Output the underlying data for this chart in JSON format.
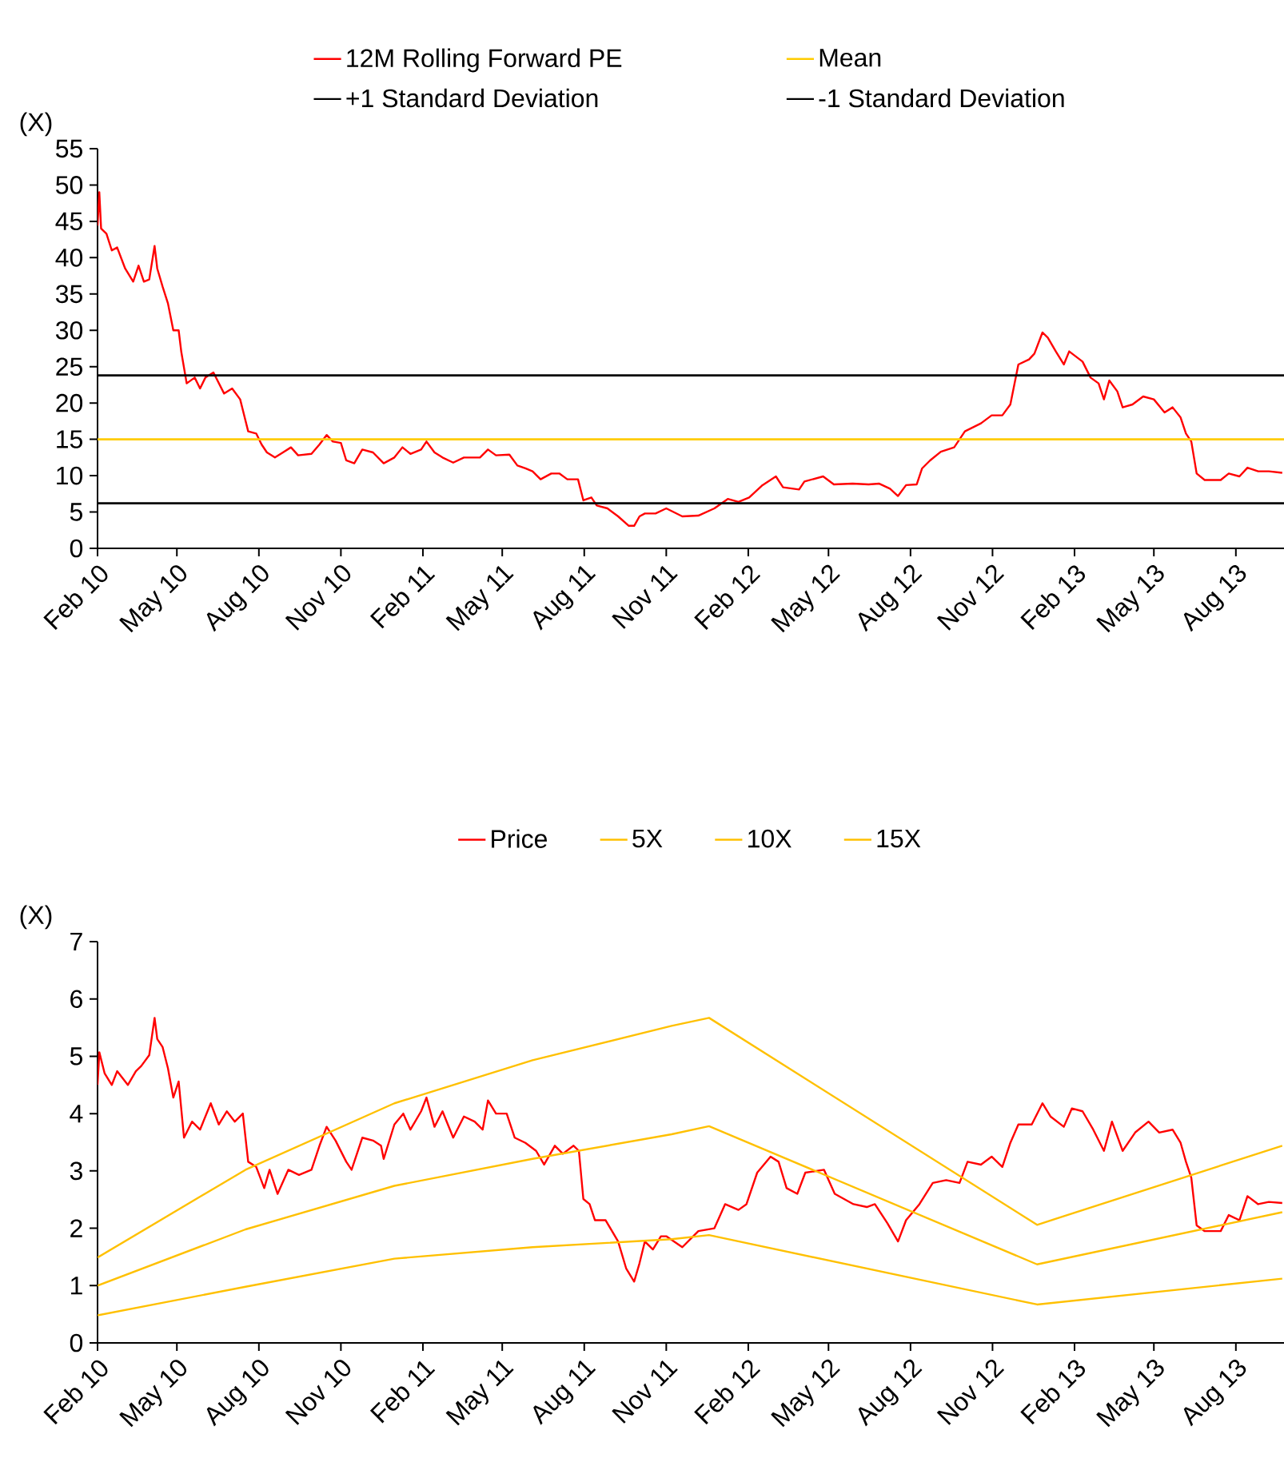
{
  "chart_data": [
    {
      "type": "line",
      "ylabel": "(X)",
      "legend": "top",
      "xlim": [
        "2010-02-01",
        "2013-09-24"
      ],
      "xticks": [
        {
          "value": "2010-02-01",
          "label": "Feb 10"
        },
        {
          "value": "2010-05-01",
          "label": "May 10"
        },
        {
          "value": "2010-08-01",
          "label": "Aug 10"
        },
        {
          "value": "2010-11-01",
          "label": "Nov 10"
        },
        {
          "value": "2011-02-01",
          "label": "Feb 11"
        },
        {
          "value": "2011-05-01",
          "label": "May 11"
        },
        {
          "value": "2011-08-01",
          "label": "Aug 11"
        },
        {
          "value": "2011-11-01",
          "label": "Nov 11"
        },
        {
          "value": "2012-02-01",
          "label": "Feb 12"
        },
        {
          "value": "2012-05-01",
          "label": "May 12"
        },
        {
          "value": "2012-08-01",
          "label": "Aug 12"
        },
        {
          "value": "2012-11-01",
          "label": "Nov 12"
        },
        {
          "value": "2013-02-01",
          "label": "Feb 13"
        },
        {
          "value": "2013-05-01",
          "label": "May 13"
        },
        {
          "value": "2013-08-01",
          "label": "Aug 13"
        }
      ],
      "ylim": [
        0,
        55
      ],
      "yticks": [
        0,
        5,
        10,
        15,
        20,
        25,
        30,
        35,
        40,
        45,
        50,
        55
      ],
      "series": [
        {
          "name": "12M Rolling Forward PE",
          "color": "#ff0000",
          "x": [
            "2010-02-01",
            "2010-02-03",
            "2010-02-05",
            "2010-02-11",
            "2010-02-17",
            "2010-02-23",
            "2010-03-04",
            "2010-03-13",
            "2010-03-19",
            "2010-03-25",
            "2010-03-31",
            "2010-04-06",
            "2010-04-09",
            "2010-04-15",
            "2010-04-21",
            "2010-04-27",
            "2010-05-03",
            "2010-05-06",
            "2010-05-12",
            "2010-05-21",
            "2010-05-27",
            "2010-06-02",
            "2010-06-11",
            "2010-06-23",
            "2010-07-02",
            "2010-07-11",
            "2010-07-20",
            "2010-07-29",
            "2010-08-04",
            "2010-08-10",
            "2010-08-19",
            "2010-08-28",
            "2010-09-06",
            "2010-09-14",
            "2010-09-29",
            "2010-10-08",
            "2010-10-16",
            "2010-10-23",
            "2010-11-01",
            "2010-11-07",
            "2010-11-16",
            "2010-11-25",
            "2010-12-07",
            "2010-12-19",
            "2010-12-31",
            "2011-01-09",
            "2011-01-18",
            "2011-01-30",
            "2011-02-05",
            "2011-02-14",
            "2011-02-23",
            "2011-03-07",
            "2011-03-19",
            "2011-04-06",
            "2011-04-15",
            "2011-04-24",
            "2011-05-09",
            "2011-05-18",
            "2011-05-27",
            "2011-06-04",
            "2011-06-13",
            "2011-06-25",
            "2011-07-04",
            "2011-07-13",
            "2011-07-25",
            "2011-07-31",
            "2011-08-09",
            "2011-08-15",
            "2011-08-27",
            "2011-09-08",
            "2011-09-20",
            "2011-09-26",
            "2011-10-02",
            "2011-10-08",
            "2011-10-20",
            "2011-11-01",
            "2011-11-19",
            "2011-12-07",
            "2011-12-25",
            "2012-01-09",
            "2012-01-21",
            "2012-02-02",
            "2012-02-17",
            "2012-03-03",
            "2012-03-11",
            "2012-03-29",
            "2012-04-04",
            "2012-04-25",
            "2012-05-07",
            "2012-05-28",
            "2012-06-15",
            "2012-06-27",
            "2012-07-09",
            "2012-07-18",
            "2012-07-27",
            "2012-08-08",
            "2012-08-14",
            "2012-08-23",
            "2012-09-04",
            "2012-09-19",
            "2012-10-01",
            "2012-10-19",
            "2012-10-31",
            "2012-11-12",
            "2012-11-21",
            "2012-11-30",
            "2012-12-12",
            "2012-12-18",
            "2012-12-27",
            "2013-01-02",
            "2013-01-11",
            "2013-01-20",
            "2013-01-26",
            "2013-02-10",
            "2013-02-19",
            "2013-02-28",
            "2013-03-06",
            "2013-03-12",
            "2013-03-21",
            "2013-03-27",
            "2013-04-07",
            "2013-04-19",
            "2013-05-01",
            "2013-05-13",
            "2013-05-22",
            "2013-05-31",
            "2013-06-06",
            "2013-06-12",
            "2013-06-18",
            "2013-06-27",
            "2013-07-15",
            "2013-07-24",
            "2013-08-05",
            "2013-08-14",
            "2013-08-26",
            "2013-09-07",
            "2013-09-22"
          ],
          "values": [
            44.4,
            49.0,
            44.0,
            43.3,
            41.0,
            41.4,
            38.5,
            36.7,
            38.9,
            36.7,
            37.0,
            41.6,
            38.5,
            36.0,
            33.7,
            30.0,
            30.0,
            27.0,
            22.7,
            23.5,
            22.0,
            23.5,
            24.2,
            21.3,
            22.0,
            20.5,
            16.1,
            15.8,
            14.3,
            13.2,
            12.5,
            13.2,
            13.9,
            12.8,
            13.0,
            14.3,
            15.6,
            14.7,
            14.5,
            12.1,
            11.7,
            13.6,
            13.2,
            11.7,
            12.5,
            13.9,
            13.0,
            13.6,
            14.7,
            13.2,
            12.5,
            11.8,
            12.5,
            12.5,
            13.6,
            12.8,
            12.9,
            11.4,
            11.0,
            10.6,
            9.5,
            10.3,
            10.3,
            9.5,
            9.5,
            6.6,
            7.0,
            5.9,
            5.5,
            4.4,
            3.1,
            3.1,
            4.4,
            4.8,
            4.8,
            5.5,
            4.4,
            4.5,
            5.5,
            6.8,
            6.4,
            7.0,
            8.7,
            9.9,
            8.4,
            8.1,
            9.2,
            9.9,
            8.8,
            8.9,
            8.8,
            8.9,
            8.2,
            7.2,
            8.7,
            8.8,
            11.0,
            12.1,
            13.3,
            13.9,
            16.1,
            17.2,
            18.3,
            18.3,
            19.8,
            25.3,
            26.0,
            26.8,
            29.7,
            29.0,
            27.1,
            25.3,
            27.1,
            25.7,
            23.5,
            22.7,
            20.5,
            23.1,
            21.6,
            19.4,
            19.8,
            20.9,
            20.5,
            18.7,
            19.4,
            18.0,
            15.8,
            14.7,
            10.3,
            9.4,
            9.4,
            10.3,
            9.9,
            11.1,
            10.6,
            10.6,
            10.4
          ]
        }
      ],
      "ref_lines": [
        {
          "axis": "y",
          "value": 15.0,
          "label": "Mean",
          "color": "#ffcc00"
        },
        {
          "axis": "y",
          "value": 23.8,
          "label": "+1 Standard Deviation",
          "color": "#000000"
        },
        {
          "axis": "y",
          "value": 6.2,
          "label": "-1 Standard Deviation",
          "color": "#000000"
        }
      ]
    },
    {
      "type": "line",
      "ylabel": "(X)",
      "legend": "top",
      "xlim": [
        "2010-02-01",
        "2013-09-24"
      ],
      "xticks": [
        {
          "value": "2010-02-01",
          "label": "Feb 10"
        },
        {
          "value": "2010-05-01",
          "label": "May 10"
        },
        {
          "value": "2010-08-01",
          "label": "Aug 10"
        },
        {
          "value": "2010-11-01",
          "label": "Nov 10"
        },
        {
          "value": "2011-02-01",
          "label": "Feb 11"
        },
        {
          "value": "2011-05-01",
          "label": "May 11"
        },
        {
          "value": "2011-08-01",
          "label": "Aug 11"
        },
        {
          "value": "2011-11-01",
          "label": "Nov 11"
        },
        {
          "value": "2012-02-01",
          "label": "Feb 12"
        },
        {
          "value": "2012-05-01",
          "label": "May 12"
        },
        {
          "value": "2012-08-01",
          "label": "Aug 12"
        },
        {
          "value": "2012-11-01",
          "label": "Nov 12"
        },
        {
          "value": "2013-02-01",
          "label": "Feb 13"
        },
        {
          "value": "2013-05-01",
          "label": "May 13"
        },
        {
          "value": "2013-08-01",
          "label": "Aug 13"
        }
      ],
      "ylim": [
        0,
        7
      ],
      "yticks": [
        0,
        1,
        2,
        3,
        4,
        5,
        6,
        7
      ],
      "series": [
        {
          "name": "Price",
          "color": "#ff0000",
          "x": [
            "2010-02-01",
            "2010-02-03",
            "2010-02-09",
            "2010-02-17",
            "2010-02-23",
            "2010-03-07",
            "2010-03-16",
            "2010-03-22",
            "2010-03-31",
            "2010-04-06",
            "2010-04-09",
            "2010-04-15",
            "2010-04-21",
            "2010-04-27",
            "2010-05-03",
            "2010-05-09",
            "2010-05-18",
            "2010-05-27",
            "2010-06-08",
            "2010-06-17",
            "2010-06-26",
            "2010-07-05",
            "2010-07-14",
            "2010-07-20",
            "2010-07-29",
            "2010-08-07",
            "2010-08-13",
            "2010-08-22",
            "2010-09-03",
            "2010-09-15",
            "2010-09-29",
            "2010-10-08",
            "2010-10-16",
            "2010-10-26",
            "2010-11-07",
            "2010-11-13",
            "2010-11-25",
            "2010-12-07",
            "2010-12-16",
            "2010-12-19",
            "2010-12-31",
            "2011-01-10",
            "2011-01-18",
            "2011-01-30",
            "2011-02-05",
            "2011-02-14",
            "2011-02-23",
            "2011-03-07",
            "2011-03-19",
            "2011-03-31",
            "2011-04-09",
            "2011-04-15",
            "2011-04-24",
            "2011-05-06",
            "2011-05-15",
            "2011-05-27",
            "2011-06-08",
            "2011-06-17",
            "2011-06-29",
            "2011-07-08",
            "2011-07-20",
            "2011-07-26",
            "2011-07-31",
            "2011-08-07",
            "2011-08-13",
            "2011-08-25",
            "2011-09-08",
            "2011-09-17",
            "2011-09-26",
            "2011-10-02",
            "2011-10-08",
            "2011-10-17",
            "2011-10-26",
            "2011-11-01",
            "2011-11-19",
            "2011-12-07",
            "2011-12-25",
            "2012-01-06",
            "2012-01-21",
            "2012-01-30",
            "2012-02-11",
            "2012-02-26",
            "2012-03-06",
            "2012-03-15",
            "2012-03-27",
            "2012-04-05",
            "2012-04-26",
            "2012-05-08",
            "2012-05-29",
            "2012-06-13",
            "2012-06-22",
            "2012-07-06",
            "2012-07-18",
            "2012-07-27",
            "2012-08-11",
            "2012-08-26",
            "2012-09-10",
            "2012-09-25",
            "2012-10-04",
            "2012-10-19",
            "2012-10-31",
            "2012-11-12",
            "2012-11-21",
            "2012-11-30",
            "2012-12-15",
            "2012-12-27",
            "2013-01-05",
            "2013-01-20",
            "2013-01-29",
            "2013-02-10",
            "2013-02-22",
            "2013-03-06",
            "2013-03-15",
            "2013-03-27",
            "2013-04-10",
            "2013-04-25",
            "2013-05-07",
            "2013-05-22",
            "2013-05-31",
            "2013-06-06",
            "2013-06-12",
            "2013-06-18",
            "2013-06-27",
            "2013-07-15",
            "2013-07-24",
            "2013-08-05",
            "2013-08-14",
            "2013-08-26",
            "2013-09-07",
            "2013-09-22"
          ],
          "values": [
            4.5,
            5.07,
            4.7,
            4.5,
            4.74,
            4.5,
            4.74,
            4.83,
            5.02,
            5.67,
            5.3,
            5.16,
            4.79,
            4.28,
            4.56,
            3.58,
            3.86,
            3.72,
            4.18,
            3.81,
            4.04,
            3.86,
            4.0,
            3.16,
            3.07,
            2.7,
            3.02,
            2.6,
            3.02,
            2.93,
            3.02,
            3.44,
            3.77,
            3.53,
            3.16,
            3.02,
            3.58,
            3.53,
            3.44,
            3.21,
            3.81,
            4.0,
            3.72,
            4.04,
            4.28,
            3.77,
            4.04,
            3.58,
            3.95,
            3.86,
            3.72,
            4.23,
            4.0,
            4.0,
            3.58,
            3.49,
            3.35,
            3.11,
            3.44,
            3.3,
            3.44,
            3.35,
            2.51,
            2.42,
            2.14,
            2.14,
            1.77,
            1.3,
            1.07,
            1.39,
            1.77,
            1.63,
            1.86,
            1.86,
            1.67,
            1.95,
            2.0,
            2.42,
            2.32,
            2.42,
            2.97,
            3.25,
            3.16,
            2.7,
            2.6,
            2.97,
            3.02,
            2.6,
            2.42,
            2.37,
            2.42,
            2.09,
            1.77,
            2.14,
            2.42,
            2.79,
            2.84,
            2.79,
            3.16,
            3.11,
            3.25,
            3.07,
            3.49,
            3.81,
            3.81,
            4.18,
            3.95,
            3.77,
            4.09,
            4.04,
            3.72,
            3.35,
            3.86,
            3.35,
            3.67,
            3.86,
            3.67,
            3.72,
            3.49,
            3.16,
            2.88,
            2.05,
            1.95,
            1.95,
            2.23,
            2.14,
            2.56,
            2.42,
            2.46,
            2.44
          ]
        },
        {
          "name": "5X",
          "color": "#ffc000",
          "x": [
            "2010-02-01",
            "2010-07-17",
            "2010-12-31",
            "2011-06-04",
            "2011-11-07",
            "2011-12-19",
            "2012-12-21",
            "2013-09-22"
          ],
          "values": [
            0.48,
            0.98,
            1.47,
            1.67,
            1.81,
            1.88,
            0.67,
            1.12
          ]
        },
        {
          "name": "10X",
          "color": "#ffc000",
          "x": [
            "2010-02-01",
            "2010-07-17",
            "2010-12-31",
            "2011-06-04",
            "2011-11-07",
            "2011-12-19",
            "2012-12-21",
            "2013-09-22"
          ],
          "values": [
            1.0,
            1.98,
            2.74,
            3.21,
            3.64,
            3.78,
            1.37,
            2.28
          ]
        },
        {
          "name": "15X",
          "color": "#ffc000",
          "x": [
            "2010-02-01",
            "2010-07-17",
            "2010-12-31",
            "2011-06-04",
            "2011-11-07",
            "2011-12-19",
            "2012-12-21",
            "2013-09-22"
          ],
          "values": [
            1.49,
            3.02,
            4.18,
            4.93,
            5.53,
            5.67,
            2.06,
            3.44
          ]
        }
      ]
    }
  ]
}
